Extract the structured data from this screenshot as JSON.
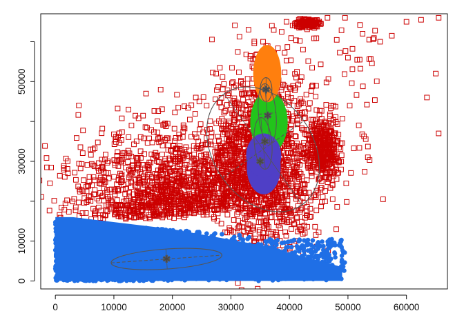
{
  "chart_data": {
    "type": "scatter",
    "title": "",
    "xlabel": "",
    "ylabel": "",
    "xlim": [
      -2500,
      67000
    ],
    "ylim": [
      -2000,
      67000
    ],
    "xticks": [
      0,
      10000,
      20000,
      30000,
      40000,
      50000,
      60000
    ],
    "xtick_labels": [
      "0",
      "10000",
      "20000",
      "30000",
      "40000",
      "50000",
      "60000"
    ],
    "yticks": [
      0,
      10000,
      30000,
      50000
    ],
    "ytick_labels": [
      "0",
      "10000",
      "30000",
      "50000"
    ],
    "legend": "none",
    "colors": {
      "outliers": "#CC0000",
      "blue": "#1F6FE6",
      "orange": "#FF7F0E",
      "green": "#22C41B",
      "purple": "#4F3FC6",
      "ellipse": "#555555"
    },
    "series": [
      {
        "name": "outliers",
        "marker": "open-square",
        "color": "#CC0000",
        "description_points": [
          [
            1000,
            12000
          ],
          [
            3500,
            18500
          ],
          [
            6500,
            29000
          ],
          [
            9000,
            30000
          ],
          [
            12500,
            43000
          ],
          [
            15500,
            47000
          ],
          [
            18000,
            48000
          ],
          [
            21000,
            43500
          ],
          [
            24000,
            46000
          ],
          [
            27500,
            39500
          ],
          [
            30500,
            48500
          ],
          [
            33000,
            63000
          ],
          [
            35500,
            60000
          ],
          [
            37000,
            64000
          ],
          [
            39500,
            65000
          ],
          [
            42500,
            65500
          ],
          [
            46500,
            66000
          ],
          [
            49500,
            66000
          ],
          [
            52500,
            62000
          ],
          [
            55500,
            60000
          ],
          [
            57500,
            61500
          ],
          [
            60000,
            65000
          ],
          [
            62500,
            65500
          ],
          [
            65500,
            66000
          ],
          [
            65000,
            52000
          ],
          [
            65500,
            37000
          ],
          [
            63500,
            46000
          ],
          [
            56000,
            20500
          ],
          [
            50000,
            56000
          ],
          [
            52000,
            55500
          ],
          [
            47500,
            44000
          ],
          [
            45500,
            30000
          ],
          [
            45500,
            25000
          ],
          [
            43500,
            16000
          ],
          [
            42000,
            13000
          ],
          [
            44500,
            11500
          ],
          [
            48000,
            13000
          ],
          [
            39000,
            15500
          ],
          [
            13000,
            39000
          ],
          [
            6000,
            33000
          ]
        ]
      },
      {
        "name": "blue-cluster",
        "marker": "filled-circle",
        "color": "#1F6FE6",
        "bounds": {
          "x": [
            0,
            50000
          ],
          "y": [
            0,
            18000
          ]
        }
      },
      {
        "name": "orange-cluster",
        "marker": "filled-circle",
        "color": "#FF7F0E",
        "center": [
          36000,
          51000
        ]
      },
      {
        "name": "green-cluster",
        "marker": "filled-circle",
        "color": "#22C41B",
        "center": [
          36500,
          42500
        ]
      },
      {
        "name": "purple-cluster",
        "marker": "filled-circle",
        "color": "#4F3FC6",
        "center": [
          35500,
          30000
        ]
      }
    ],
    "ellipses": [
      {
        "name": "ellipse-blue",
        "center": [
          19000,
          5500
        ],
        "rx": 9500,
        "ry": 2500,
        "angle_deg": 4
      },
      {
        "name": "ellipse-large",
        "center": [
          35500,
          33000
        ],
        "rx": 8500,
        "ry": 17000,
        "angle_deg": 35
      },
      {
        "name": "ellipse-orange",
        "center": [
          36000,
          48000
        ],
        "rx": 1000,
        "ry": 3000,
        "angle_deg": 0
      },
      {
        "name": "ellipse-green",
        "center": [
          36200,
          42000
        ],
        "rx": 1500,
        "ry": 7500,
        "angle_deg": 5
      },
      {
        "name": "ellipse-purple",
        "center": [
          35500,
          34500
        ],
        "rx": 1500,
        "ry": 6500,
        "angle_deg": 5
      }
    ],
    "centers": [
      [
        19000,
        5500
      ],
      [
        36000,
        48000
      ],
      [
        36300,
        41500
      ],
      [
        35800,
        35000
      ],
      [
        35000,
        30000
      ]
    ]
  }
}
